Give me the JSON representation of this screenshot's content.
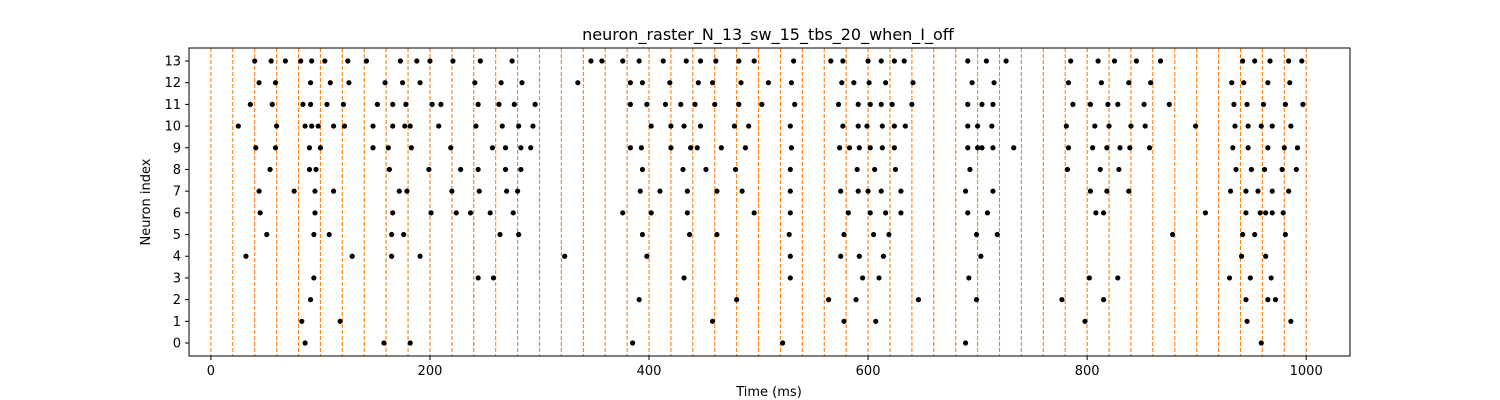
{
  "chart_data": {
    "type": "scatter",
    "title": "neuron_raster_N_13_sw_15_tbs_20_when_I_off",
    "xlabel": "Time (ms)",
    "ylabel": "Neuron index",
    "xlim": [
      -20,
      1040
    ],
    "ylim": [
      -0.6,
      13.6
    ],
    "xticks": [
      0,
      200,
      400,
      600,
      800,
      1000
    ],
    "yticks": [
      0,
      1,
      2,
      3,
      4,
      5,
      6,
      7,
      8,
      9,
      10,
      11,
      12,
      13
    ],
    "grid": false,
    "legend": "none",
    "marker_color": "#000000",
    "vline_color": "#ff7f0e",
    "vlines": [
      0,
      20,
      40,
      60,
      80,
      100,
      120,
      140,
      160,
      180,
      200,
      220,
      240,
      260,
      280,
      300,
      320,
      340,
      360,
      380,
      400,
      420,
      440,
      460,
      480,
      500,
      520,
      540,
      560,
      580,
      600,
      620,
      640,
      660,
      680,
      700,
      720,
      740,
      760,
      780,
      800,
      820,
      840,
      860,
      880,
      900,
      920,
      940,
      960,
      980,
      1000
    ],
    "spikes": [
      [
        [
          86,
          0
        ],
        [
          158,
          0
        ],
        [
          182,
          0
        ],
        [
          385,
          0
        ],
        [
          522,
          0
        ],
        [
          689,
          0
        ],
        [
          959,
          0
        ]
      ],
      [
        [
          83,
          1
        ],
        [
          118,
          1
        ],
        [
          458,
          1
        ],
        [
          578,
          1
        ],
        [
          607,
          1
        ],
        [
          798,
          1
        ],
        [
          946,
          1
        ],
        [
          986,
          1
        ]
      ],
      [
        [
          91,
          2
        ],
        [
          391,
          2
        ],
        [
          480,
          2
        ],
        [
          564,
          2
        ],
        [
          589,
          2
        ],
        [
          646,
          2
        ],
        [
          699,
          2
        ],
        [
          777,
          2
        ],
        [
          815,
          2
        ],
        [
          945,
          2
        ],
        [
          965,
          2
        ],
        [
          972,
          2
        ]
      ],
      [
        [
          94,
          3
        ],
        [
          244,
          3
        ],
        [
          258,
          3
        ],
        [
          432,
          3
        ],
        [
          529,
          3
        ],
        [
          595,
          3
        ],
        [
          610,
          3
        ],
        [
          692,
          3
        ],
        [
          802,
          3
        ],
        [
          828,
          3
        ],
        [
          930,
          3
        ],
        [
          949,
          3
        ],
        [
          968,
          3
        ]
      ],
      [
        [
          32,
          4
        ],
        [
          129,
          4
        ],
        [
          165,
          4
        ],
        [
          191,
          4
        ],
        [
          323,
          4
        ],
        [
          398,
          4
        ],
        [
          529,
          4
        ],
        [
          575,
          4
        ],
        [
          592,
          4
        ],
        [
          614,
          4
        ],
        [
          703,
          4
        ],
        [
          941,
          4
        ],
        [
          963,
          4
        ]
      ],
      [
        [
          51,
          5
        ],
        [
          94,
          5
        ],
        [
          108,
          5
        ],
        [
          165,
          5
        ],
        [
          176,
          5
        ],
        [
          264,
          5
        ],
        [
          281,
          5
        ],
        [
          394,
          5
        ],
        [
          437,
          5
        ],
        [
          462,
          5
        ],
        [
          528,
          5
        ],
        [
          578,
          5
        ],
        [
          605,
          5
        ],
        [
          619,
          5
        ],
        [
          699,
          5
        ],
        [
          718,
          5
        ],
        [
          878,
          5
        ],
        [
          942,
          5
        ],
        [
          953,
          5
        ],
        [
          981,
          5
        ]
      ],
      [
        [
          45,
          6
        ],
        [
          95,
          6
        ],
        [
          166,
          6
        ],
        [
          201,
          6
        ],
        [
          224,
          6
        ],
        [
          237,
          6
        ],
        [
          255,
          6
        ],
        [
          276,
          6
        ],
        [
          376,
          6
        ],
        [
          402,
          6
        ],
        [
          435,
          6
        ],
        [
          496,
          6
        ],
        [
          529,
          6
        ],
        [
          582,
          6
        ],
        [
          602,
          6
        ],
        [
          616,
          6
        ],
        [
          630,
          6
        ],
        [
          691,
          6
        ],
        [
          709,
          6
        ],
        [
          808,
          6
        ],
        [
          815,
          6
        ],
        [
          908,
          6
        ],
        [
          945,
          6
        ],
        [
          958,
          6
        ],
        [
          963,
          6
        ],
        [
          969,
          6
        ],
        [
          979,
          6
        ]
      ],
      [
        [
          44,
          7
        ],
        [
          76,
          7
        ],
        [
          95,
          7
        ],
        [
          112,
          7
        ],
        [
          172,
          7
        ],
        [
          179,
          7
        ],
        [
          220,
          7
        ],
        [
          245,
          7
        ],
        [
          270,
          7
        ],
        [
          280,
          7
        ],
        [
          392,
          7
        ],
        [
          410,
          7
        ],
        [
          435,
          7
        ],
        [
          462,
          7
        ],
        [
          485,
          7
        ],
        [
          529,
          7
        ],
        [
          575,
          7
        ],
        [
          591,
          7
        ],
        [
          600,
          7
        ],
        [
          612,
          7
        ],
        [
          630,
          7
        ],
        [
          689,
          7
        ],
        [
          714,
          7
        ],
        [
          803,
          7
        ],
        [
          818,
          7
        ],
        [
          838,
          7
        ],
        [
          931,
          7
        ],
        [
          945,
          7
        ],
        [
          956,
          7
        ],
        [
          969,
          7
        ],
        [
          984,
          7
        ]
      ],
      [
        [
          54,
          8
        ],
        [
          90,
          8
        ],
        [
          96,
          8
        ],
        [
          163,
          8
        ],
        [
          199,
          8
        ],
        [
          228,
          8
        ],
        [
          244,
          8
        ],
        [
          269,
          8
        ],
        [
          283,
          8
        ],
        [
          394,
          8
        ],
        [
          431,
          8
        ],
        [
          452,
          8
        ],
        [
          479,
          8
        ],
        [
          529,
          8
        ],
        [
          590,
          8
        ],
        [
          606,
          8
        ],
        [
          625,
          8
        ],
        [
          693,
          8
        ],
        [
          782,
          8
        ],
        [
          812,
          8
        ],
        [
          829,
          8
        ],
        [
          936,
          8
        ],
        [
          950,
          8
        ],
        [
          962,
          8
        ],
        [
          978,
          8
        ],
        [
          991,
          8
        ]
      ],
      [
        [
          41,
          9
        ],
        [
          59,
          9
        ],
        [
          90,
          9
        ],
        [
          100,
          9
        ],
        [
          148,
          9
        ],
        [
          162,
          9
        ],
        [
          183,
          9
        ],
        [
          219,
          9
        ],
        [
          257,
          9
        ],
        [
          269,
          9
        ],
        [
          283,
          9
        ],
        [
          292,
          9
        ],
        [
          383,
          9
        ],
        [
          393,
          9
        ],
        [
          420,
          9
        ],
        [
          438,
          9
        ],
        [
          444,
          9
        ],
        [
          466,
          9
        ],
        [
          488,
          9
        ],
        [
          530,
          9
        ],
        [
          574,
          9
        ],
        [
          583,
          9
        ],
        [
          592,
          9
        ],
        [
          602,
          9
        ],
        [
          613,
          9
        ],
        [
          624,
          9
        ],
        [
          691,
          9
        ],
        [
          700,
          9
        ],
        [
          704,
          9
        ],
        [
          714,
          9
        ],
        [
          733,
          9
        ],
        [
          783,
          9
        ],
        [
          805,
          9
        ],
        [
          818,
          9
        ],
        [
          830,
          9
        ],
        [
          839,
          9
        ],
        [
          857,
          9
        ],
        [
          933,
          9
        ],
        [
          947,
          9
        ],
        [
          965,
          9
        ],
        [
          980,
          9
        ],
        [
          992,
          9
        ]
      ],
      [
        [
          25,
          10
        ],
        [
          60,
          10
        ],
        [
          86,
          10
        ],
        [
          92,
          10
        ],
        [
          98,
          10
        ],
        [
          112,
          10
        ],
        [
          122,
          10
        ],
        [
          148,
          10
        ],
        [
          166,
          10
        ],
        [
          177,
          10
        ],
        [
          182,
          10
        ],
        [
          208,
          10
        ],
        [
          242,
          10
        ],
        [
          266,
          10
        ],
        [
          281,
          10
        ],
        [
          294,
          10
        ],
        [
          402,
          10
        ],
        [
          420,
          10
        ],
        [
          432,
          10
        ],
        [
          447,
          10
        ],
        [
          478,
          10
        ],
        [
          491,
          10
        ],
        [
          529,
          10
        ],
        [
          577,
          10
        ],
        [
          591,
          10
        ],
        [
          599,
          10
        ],
        [
          613,
          10
        ],
        [
          624,
          10
        ],
        [
          634,
          10
        ],
        [
          691,
          10
        ],
        [
          700,
          10
        ],
        [
          713,
          10
        ],
        [
          781,
          10
        ],
        [
          807,
          10
        ],
        [
          820,
          10
        ],
        [
          840,
          10
        ],
        [
          853,
          10
        ],
        [
          899,
          10
        ],
        [
          935,
          10
        ],
        [
          947,
          10
        ],
        [
          959,
          10
        ],
        [
          969,
          10
        ],
        [
          986,
          10
        ]
      ],
      [
        [
          36,
          11
        ],
        [
          56,
          11
        ],
        [
          84,
          11
        ],
        [
          91,
          11
        ],
        [
          106,
          11
        ],
        [
          121,
          11
        ],
        [
          152,
          11
        ],
        [
          166,
          11
        ],
        [
          178,
          11
        ],
        [
          202,
          11
        ],
        [
          210,
          11
        ],
        [
          244,
          11
        ],
        [
          263,
          11
        ],
        [
          277,
          11
        ],
        [
          296,
          11
        ],
        [
          383,
          11
        ],
        [
          398,
          11
        ],
        [
          415,
          11
        ],
        [
          429,
          11
        ],
        [
          442,
          11
        ],
        [
          460,
          11
        ],
        [
          482,
          11
        ],
        [
          503,
          11
        ],
        [
          533,
          11
        ],
        [
          573,
          11
        ],
        [
          591,
          11
        ],
        [
          602,
          11
        ],
        [
          612,
          11
        ],
        [
          622,
          11
        ],
        [
          640,
          11
        ],
        [
          691,
          11
        ],
        [
          704,
          11
        ],
        [
          714,
          11
        ],
        [
          787,
          11
        ],
        [
          803,
          11
        ],
        [
          819,
          11
        ],
        [
          828,
          11
        ],
        [
          852,
          11
        ],
        [
          875,
          11
        ],
        [
          934,
          11
        ],
        [
          946,
          11
        ],
        [
          961,
          11
        ],
        [
          981,
          11
        ],
        [
          997,
          11
        ]
      ],
      [
        [
          44,
          12
        ],
        [
          59,
          12
        ],
        [
          91,
          12
        ],
        [
          109,
          12
        ],
        [
          126,
          12
        ],
        [
          159,
          12
        ],
        [
          175,
          12
        ],
        [
          191,
          12
        ],
        [
          241,
          12
        ],
        [
          265,
          12
        ],
        [
          284,
          12
        ],
        [
          335,
          12
        ],
        [
          383,
          12
        ],
        [
          394,
          12
        ],
        [
          419,
          12
        ],
        [
          445,
          12
        ],
        [
          458,
          12
        ],
        [
          484,
          12
        ],
        [
          509,
          12
        ],
        [
          530,
          12
        ],
        [
          576,
          12
        ],
        [
          587,
          12
        ],
        [
          601,
          12
        ],
        [
          616,
          12
        ],
        [
          641,
          12
        ],
        [
          695,
          12
        ],
        [
          715,
          12
        ],
        [
          783,
          12
        ],
        [
          813,
          12
        ],
        [
          838,
          12
        ],
        [
          858,
          12
        ],
        [
          932,
          12
        ],
        [
          943,
          12
        ],
        [
          965,
          12
        ],
        [
          985,
          12
        ]
      ],
      [
        [
          40,
          13
        ],
        [
          55,
          13
        ],
        [
          68,
          13
        ],
        [
          82,
          13
        ],
        [
          92,
          13
        ],
        [
          104,
          13
        ],
        [
          125,
          13
        ],
        [
          142,
          13
        ],
        [
          173,
          13
        ],
        [
          188,
          13
        ],
        [
          200,
          13
        ],
        [
          221,
          13
        ],
        [
          246,
          13
        ],
        [
          275,
          13
        ],
        [
          347,
          13
        ],
        [
          357,
          13
        ],
        [
          376,
          13
        ],
        [
          391,
          13
        ],
        [
          413,
          13
        ],
        [
          434,
          13
        ],
        [
          447,
          13
        ],
        [
          461,
          13
        ],
        [
          482,
          13
        ],
        [
          496,
          13
        ],
        [
          532,
          13
        ],
        [
          566,
          13
        ],
        [
          577,
          13
        ],
        [
          600,
          13
        ],
        [
          612,
          13
        ],
        [
          624,
          13
        ],
        [
          633,
          13
        ],
        [
          691,
          13
        ],
        [
          708,
          13
        ],
        [
          726,
          13
        ],
        [
          785,
          13
        ],
        [
          810,
          13
        ],
        [
          825,
          13
        ],
        [
          845,
          13
        ],
        [
          867,
          13
        ],
        [
          942,
          13
        ],
        [
          953,
          13
        ],
        [
          967,
          13
        ],
        [
          984,
          13
        ],
        [
          996,
          13
        ]
      ]
    ]
  }
}
